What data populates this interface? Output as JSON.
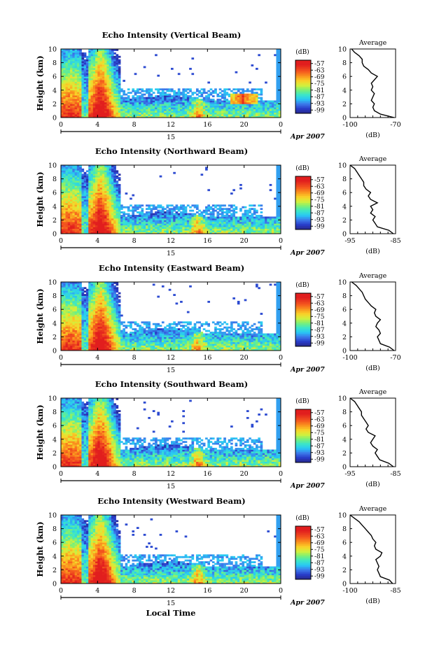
{
  "figure": {
    "bottom_xlabel": "Local Time",
    "panel_height_label": "Height (km)",
    "colorbar_unit": "(dB)",
    "colorbar_ticks": [
      "-57",
      "-63",
      "-69",
      "-75",
      "-81",
      "-87",
      "-93",
      "-99"
    ],
    "day_label": "15",
    "month_year": "Apr 2007",
    "average_title": "Average",
    "average_xlabel": "(dB)"
  },
  "chart_data": [
    {
      "type": "heatmap",
      "title": "Echo Intensity (Vertical Beam)",
      "xlabel": "Local Time",
      "ylabel": "Height (km)",
      "x_ticks": [
        "0",
        "4",
        "8",
        "12",
        "16",
        "20",
        "0"
      ],
      "y_ticks": [
        "0",
        "2",
        "4",
        "6",
        "8",
        "10"
      ],
      "xlim": [
        0,
        24
      ],
      "ylim": [
        0,
        10
      ],
      "colorbar": {
        "label": "(dB)",
        "ticks": [
          -57,
          -63,
          -69,
          -75,
          -81,
          -87,
          -93,
          -99
        ],
        "range": [
          -100,
          -54
        ]
      },
      "date_label": "15",
      "month_label": "Apr 2007",
      "average_profile": {
        "title": "Average",
        "xlabel": "(dB)",
        "xlim": [
          -100,
          -70
        ],
        "x_ticks": [
          "-100",
          "-70"
        ],
        "y_ticks": [
          "0",
          "2",
          "4",
          "6",
          "8",
          "10"
        ],
        "height_km": [
          0,
          0.5,
          1,
          1.5,
          2,
          2.5,
          3,
          3.5,
          4,
          4.5,
          5,
          5.5,
          6,
          6.5,
          7,
          7.5,
          8,
          8.5,
          9,
          9.5,
          10
        ],
        "db": [
          -71,
          -80,
          -84,
          -85,
          -84,
          -86,
          -85,
          -84,
          -86,
          -85,
          -86,
          -84,
          -82,
          -86,
          -88,
          -91,
          -92,
          -92,
          -94,
          -97,
          -99
        ]
      }
    },
    {
      "type": "heatmap",
      "title": "Echo Intensity (Northward Beam)",
      "xlabel": "Local Time",
      "ylabel": "Height (km)",
      "x_ticks": [
        "0",
        "4",
        "8",
        "12",
        "16",
        "20",
        "0"
      ],
      "y_ticks": [
        "0",
        "2",
        "4",
        "6",
        "8",
        "10"
      ],
      "xlim": [
        0,
        24
      ],
      "ylim": [
        0,
        10
      ],
      "colorbar": {
        "label": "(dB)",
        "ticks": [
          -57,
          -63,
          -69,
          -75,
          -81,
          -87,
          -93,
          -99
        ],
        "range": [
          -100,
          -54
        ]
      },
      "date_label": "15",
      "month_label": "Apr 2007",
      "average_profile": {
        "title": "Average",
        "xlabel": "(dB)",
        "xlim": [
          -95,
          -85
        ],
        "x_ticks": [
          "-95",
          "-85"
        ],
        "y_ticks": [
          "0",
          "2",
          "4",
          "6",
          "8",
          "10"
        ],
        "height_km": [
          0,
          0.5,
          1,
          1.5,
          2,
          2.5,
          3,
          3.5,
          4,
          4.5,
          5,
          5.5,
          6,
          6.5,
          7,
          7.5,
          8,
          8.5,
          9,
          9.5,
          10
        ],
        "db": [
          -85.5,
          -86.5,
          -89,
          -89.5,
          -90,
          -89.5,
          -90.5,
          -90,
          -90.5,
          -89,
          -90.5,
          -91,
          -90.5,
          -91.5,
          -92,
          -92,
          -92.5,
          -93,
          -93.5,
          -94,
          -95
        ]
      }
    },
    {
      "type": "heatmap",
      "title": "Echo Intensity (Eastward Beam)",
      "xlabel": "Local Time",
      "ylabel": "Height (km)",
      "x_ticks": [
        "0",
        "4",
        "8",
        "12",
        "16",
        "20",
        "0"
      ],
      "y_ticks": [
        "0",
        "2",
        "4",
        "6",
        "8",
        "10"
      ],
      "xlim": [
        0,
        24
      ],
      "ylim": [
        0,
        10
      ],
      "colorbar": {
        "label": "(dB)",
        "ticks": [
          -57,
          -63,
          -69,
          -75,
          -81,
          -87,
          -93,
          -99
        ],
        "range": [
          -100,
          -54
        ]
      },
      "date_label": "15",
      "month_label": "Apr 2007",
      "average_profile": {
        "title": "Average",
        "xlabel": "(dB)",
        "xlim": [
          -100,
          -70
        ],
        "x_ticks": [
          "-100",
          "-70"
        ],
        "y_ticks": [
          "0",
          "2",
          "4",
          "6",
          "8",
          "10"
        ],
        "height_km": [
          0,
          0.5,
          1,
          1.5,
          2,
          2.5,
          3,
          3.5,
          4,
          4.5,
          5,
          5.5,
          6,
          6.5,
          7,
          7.5,
          8,
          8.5,
          9,
          9.5,
          10
        ],
        "db": [
          -71,
          -74,
          -80,
          -81,
          -82,
          -80,
          -81,
          -83,
          -82,
          -80,
          -83,
          -84,
          -83,
          -86,
          -88,
          -90,
          -91,
          -92,
          -94,
          -96,
          -99
        ]
      }
    },
    {
      "type": "heatmap",
      "title": "Echo Intensity (Southward Beam)",
      "xlabel": "Local Time",
      "ylabel": "Height (km)",
      "x_ticks": [
        "0",
        "4",
        "8",
        "12",
        "16",
        "20",
        "0"
      ],
      "y_ticks": [
        "0",
        "2",
        "4",
        "6",
        "8",
        "10"
      ],
      "xlim": [
        0,
        24
      ],
      "ylim": [
        0,
        10
      ],
      "colorbar": {
        "label": "(dB)",
        "ticks": [
          -57,
          -63,
          -69,
          -75,
          -81,
          -87,
          -93,
          -99
        ],
        "range": [
          -100,
          -54
        ]
      },
      "date_label": "15",
      "month_label": "Apr 2007",
      "average_profile": {
        "title": "Average",
        "xlabel": "(dB)",
        "xlim": [
          -95,
          -85
        ],
        "x_ticks": [
          "-95",
          "-85"
        ],
        "y_ticks": [
          "0",
          "2",
          "4",
          "6",
          "8",
          "10"
        ],
        "height_km": [
          0,
          0.5,
          1,
          1.5,
          2,
          2.5,
          3,
          3.5,
          4,
          4.5,
          5,
          5.5,
          6,
          6.5,
          7,
          7.5,
          8,
          8.5,
          9,
          9.5,
          10
        ],
        "db": [
          -85.5,
          -86.5,
          -88.5,
          -89,
          -89.5,
          -89,
          -90,
          -90.5,
          -90,
          -89.5,
          -91,
          -91.5,
          -91,
          -91.5,
          -92,
          -92.5,
          -92.5,
          -93,
          -93.5,
          -94,
          -95
        ]
      }
    },
    {
      "type": "heatmap",
      "title": "Echo Intensity (Westward Beam)",
      "xlabel": "Local Time",
      "ylabel": "Height (km)",
      "x_ticks": [
        "0",
        "4",
        "8",
        "12",
        "16",
        "20",
        "0"
      ],
      "y_ticks": [
        "0",
        "2",
        "4",
        "6",
        "8",
        "10"
      ],
      "xlim": [
        0,
        24
      ],
      "ylim": [
        0,
        10
      ],
      "colorbar": {
        "label": "(dB)",
        "ticks": [
          -57,
          -63,
          -69,
          -75,
          -81,
          -87,
          -93,
          -99
        ],
        "range": [
          -100,
          -54
        ]
      },
      "date_label": "15",
      "month_label": "Apr 2007",
      "average_profile": {
        "title": "Average",
        "xlabel": "(dB)",
        "xlim": [
          -100,
          -85
        ],
        "x_ticks": [
          "-100",
          "-85"
        ],
        "y_ticks": [
          "0",
          "2",
          "4",
          "6",
          "8",
          "10"
        ],
        "height_km": [
          0,
          0.5,
          1,
          1.5,
          2,
          2.5,
          3,
          3.5,
          4,
          4.5,
          5,
          5.5,
          6,
          6.5,
          7,
          7.5,
          8,
          8.5,
          9,
          9.5,
          10
        ],
        "db": [
          -86,
          -87,
          -90,
          -90.5,
          -91,
          -90.5,
          -91,
          -91.5,
          -90,
          -89.5,
          -91.5,
          -92,
          -91.5,
          -92.5,
          -93,
          -94,
          -95,
          -96,
          -97,
          -98.5,
          -100
        ]
      }
    }
  ]
}
